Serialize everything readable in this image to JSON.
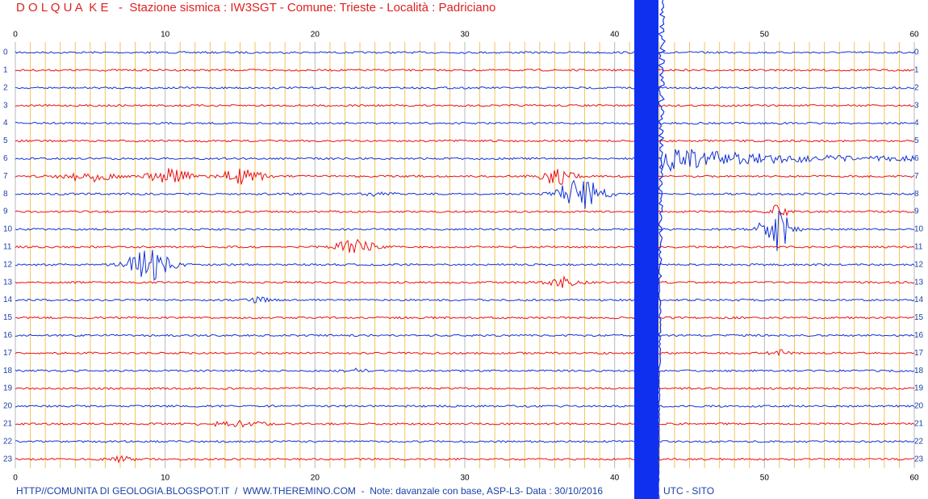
{
  "header": {
    "title": "D O L Q U A  K E   -  Stazione sismica : IW3SGT - Comune: Trieste - Località : Padriciano"
  },
  "minute_ticks": [
    "0",
    "10",
    "20",
    "30",
    "40",
    "50",
    "60"
  ],
  "hour_rows": [
    "0",
    "1",
    "2",
    "3",
    "4",
    "5",
    "6",
    "7",
    "8",
    "9",
    "10",
    "11",
    "12",
    "13",
    "14",
    "15",
    "16",
    "17",
    "18",
    "19",
    "20",
    "21",
    "22",
    "23"
  ],
  "footer": {
    "left": "HTTP//COMUNITA DI GEOLOGIA.BLOGSPOT.IT  /  WWW.THEREMINO.COM  -  Note: davanzale con base, ASP-L3- Data : 30/10/2016",
    "right": "UTC - SITO"
  }
}
